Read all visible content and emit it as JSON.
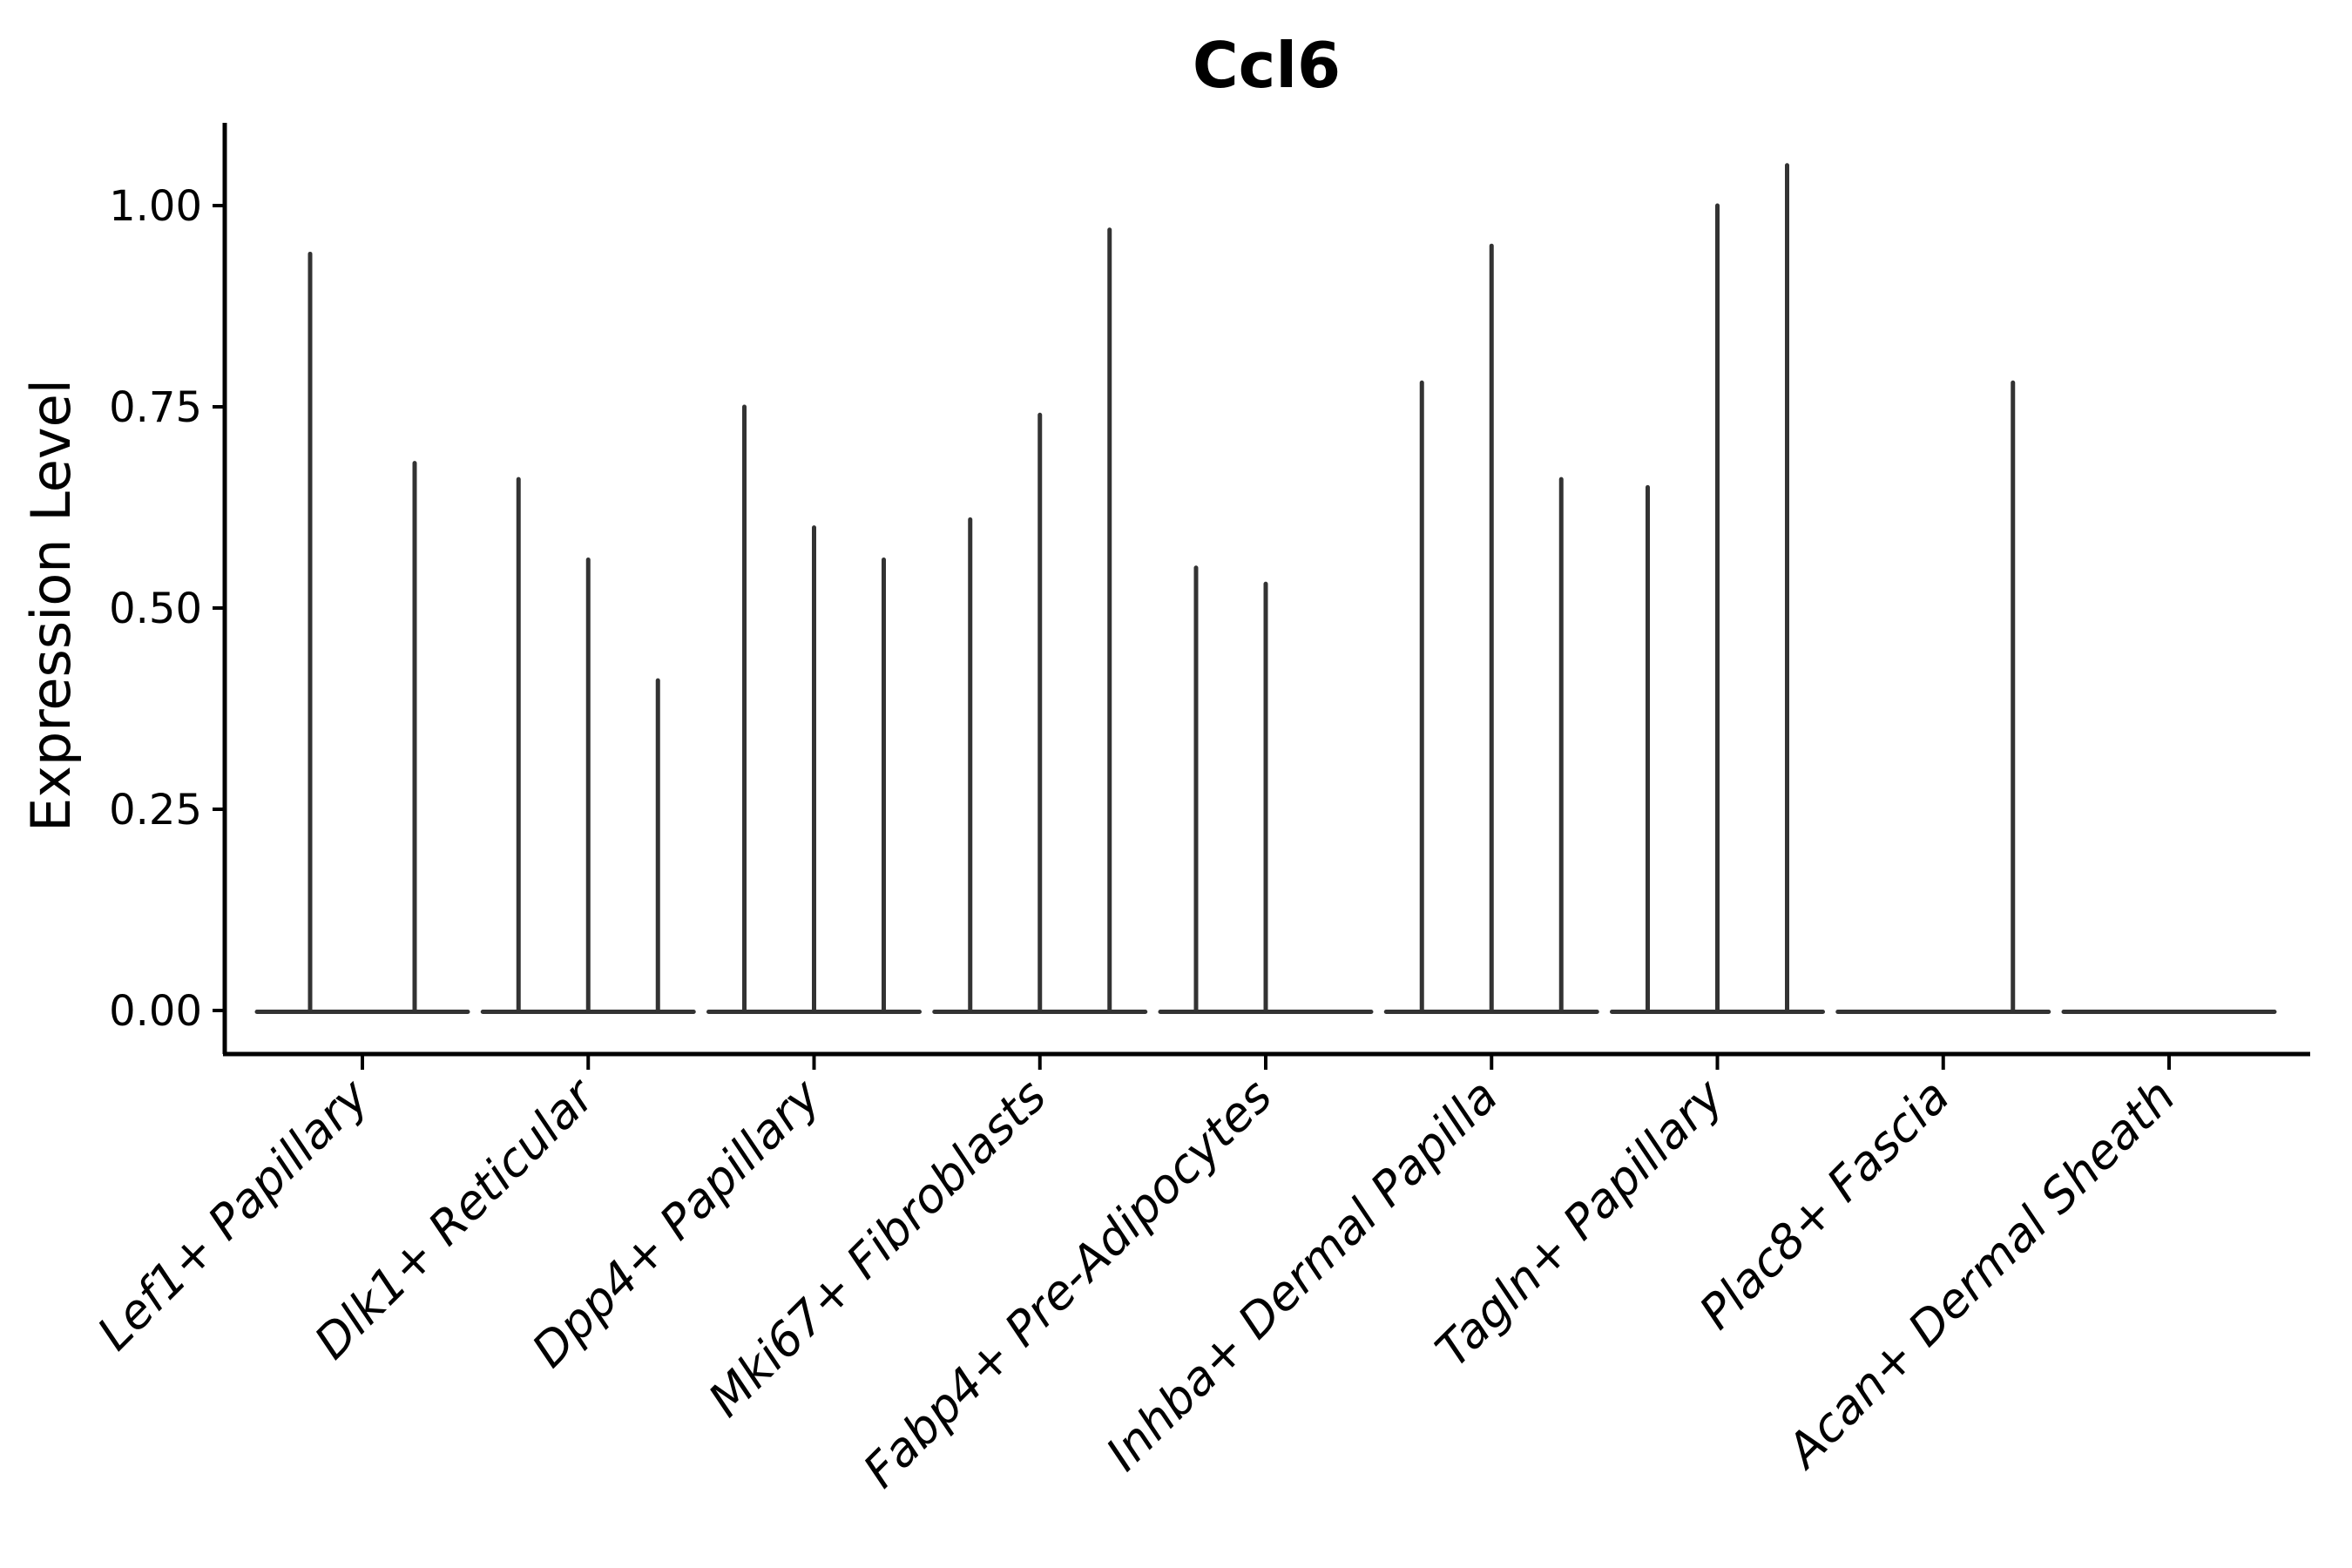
{
  "figure": {
    "background_color": "#ffffff",
    "axis_color": "#000000",
    "violin_color": "#333333"
  },
  "chart_data": {
    "type": "violin",
    "title": "Ccl6",
    "xlabel": "",
    "ylabel": "Expression Level",
    "ylim": [
      -0.054,
      1.103
    ],
    "grid": false,
    "legend": "none",
    "yticks": [
      0.0,
      0.25,
      0.5,
      0.75,
      1.0
    ],
    "ytick_labels": [
      "0.00",
      "0.25",
      "0.50",
      "0.75",
      "1.00"
    ],
    "categories": [
      "Lef1+ Papillary",
      "Dlk1+ Reticular",
      "Dpp4+ Papillary",
      "Mki67+ Fibroblasts",
      "Fabp4+ Pre-Adipocytes",
      "Inhba+ Dermal Papilla",
      "Tagln+ Papillary",
      "Plac8+ Fascia",
      "Acan+ Dermal Sheath"
    ],
    "groups": [
      {
        "label": "Lef1+ Papillary",
        "violin_maxima": [
          0.94,
          0.68
        ]
      },
      {
        "label": "Dlk1+ Reticular",
        "violin_maxima": [
          0.66,
          0.56,
          0.41
        ]
      },
      {
        "label": "Dpp4+ Papillary",
        "violin_maxima": [
          0.75,
          0.6,
          0.56
        ]
      },
      {
        "label": "Mki67+ Fibroblasts",
        "violin_maxima": [
          0.61,
          0.74,
          0.97
        ]
      },
      {
        "label": "Fabp4+ Pre-Adipocytes",
        "violin_maxima": [
          0.55,
          0.53,
          0.0
        ]
      },
      {
        "label": "Inhba+ Dermal Papilla",
        "violin_maxima": [
          0.78,
          0.95,
          0.66
        ]
      },
      {
        "label": "Tagln+ Papillary",
        "violin_maxima": [
          0.65,
          1.0,
          1.05
        ]
      },
      {
        "label": "Plac8+ Fascia",
        "violin_maxima": [
          0.0,
          0.0,
          0.78
        ]
      },
      {
        "label": "Acan+ Dermal Sheath",
        "violin_maxima": [
          0.0,
          0.0,
          0.0
        ]
      }
    ],
    "note": "Each category shows pencil-thin violins (near-zero density bulk at 0 with a thin spike to the listed maximum expression value)."
  }
}
